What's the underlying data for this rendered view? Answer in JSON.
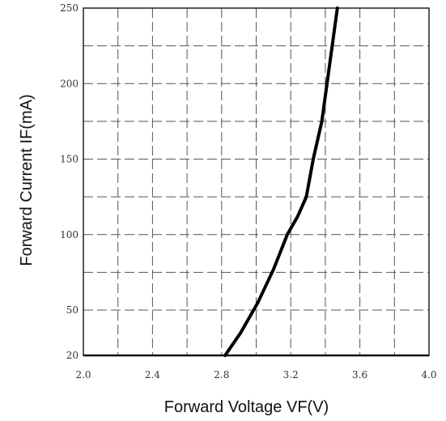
{
  "chart_data": {
    "type": "line",
    "title": "",
    "xlabel": "Forward Voltage VF(V)",
    "ylabel": "Forward Current IF(mA)",
    "xlim": [
      2.0,
      4.0
    ],
    "ylim": [
      20,
      250
    ],
    "x_ticks": [
      {
        "value": 2.0,
        "label": "2.0"
      },
      {
        "value": 2.4,
        "label": "2.4"
      },
      {
        "value": 2.8,
        "label": "2.8"
      },
      {
        "value": 3.2,
        "label": "3.2"
      },
      {
        "value": 3.6,
        "label": "3.6"
      },
      {
        "value": 4.0,
        "label": "4.0"
      }
    ],
    "y_ticks": [
      {
        "value": 20,
        "label": "20"
      },
      {
        "value": 50,
        "label": "50"
      },
      {
        "value": 100,
        "label": "100"
      },
      {
        "value": 150,
        "label": "150"
      },
      {
        "value": 200,
        "label": "200"
      },
      {
        "value": 250,
        "label": "250"
      }
    ],
    "x_minor_gridlines": [
      2.2,
      2.6,
      3.0,
      3.4,
      3.8
    ],
    "y_minor_gridlines": [
      75,
      125,
      175,
      225
    ],
    "grid": true,
    "series": [
      {
        "x": [
          2.82,
          2.91,
          3.01,
          3.1,
          3.18,
          3.24,
          3.29,
          3.33,
          3.38,
          3.41,
          3.44,
          3.47
        ],
        "y": [
          20,
          35,
          55,
          77,
          100,
          112,
          125,
          150,
          175,
          200,
          225,
          250
        ]
      }
    ]
  }
}
